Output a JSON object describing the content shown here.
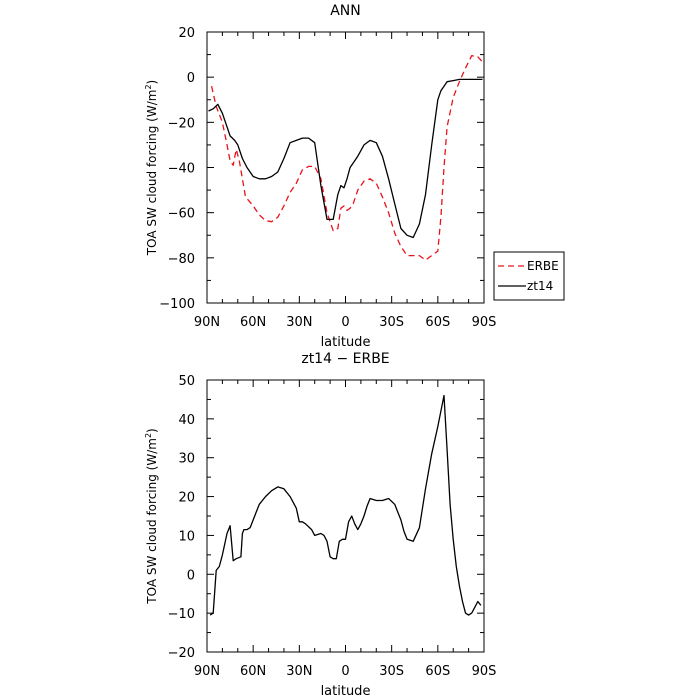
{
  "chart_data": [
    {
      "type": "line",
      "title": "ANN",
      "xlabel": "latitude",
      "ylabel_parts": [
        "TOA SW cloud forcing (W/m",
        "2",
        ")"
      ],
      "x_range": [
        90,
        -90
      ],
      "x_ticks": [
        90,
        60,
        30,
        0,
        -30,
        -60,
        -90
      ],
      "x_tick_labels": [
        "90N",
        "60N",
        "30N",
        "0",
        "30S",
        "60S",
        "90S"
      ],
      "ylim": [
        -100,
        20
      ],
      "y_ticks": [
        -100,
        -80,
        -60,
        -40,
        -20,
        0,
        20
      ],
      "y_tick_labels": [
        "−100",
        "−80",
        "−60",
        "−40",
        "−20",
        "0",
        "20"
      ],
      "legend_position": "right",
      "series": [
        {
          "name": "ERBE",
          "color": "#e8141c",
          "dash": "dashed",
          "x": [
            87,
            84,
            80,
            77,
            75,
            73,
            71,
            69,
            65,
            60,
            56,
            52,
            48,
            44,
            40,
            36,
            32,
            28,
            24,
            20,
            16,
            12,
            8,
            5,
            3,
            1,
            -1,
            -3,
            -5,
            -8,
            -12,
            -16,
            -20,
            -24,
            -28,
            -32,
            -36,
            -40,
            -44,
            -48,
            -52,
            -56,
            -60,
            -62,
            -64,
            -66,
            -70,
            -74,
            -78,
            -82,
            -86,
            -90
          ],
          "y": [
            -4,
            -13,
            -20,
            -30,
            -37,
            -39,
            -32,
            -37,
            -53,
            -57,
            -61,
            -63.5,
            -64,
            -62,
            -57,
            -51,
            -47,
            -41,
            -39.5,
            -39.5,
            -45,
            -60,
            -68,
            -67,
            -58,
            -57,
            -59,
            -58,
            -56,
            -50,
            -46,
            -45,
            -47,
            -53,
            -60,
            -69,
            -75,
            -79,
            -79,
            -79,
            -81,
            -79,
            -77,
            -62,
            -40,
            -22,
            -9,
            -2,
            4,
            9.5,
            9,
            6
          ]
        },
        {
          "name": "zt14",
          "color": "#000000",
          "dash": "solid",
          "x": [
            89,
            86,
            83,
            80,
            77,
            75,
            72,
            70,
            67,
            64,
            60,
            56,
            52,
            48,
            44,
            40,
            36,
            32,
            28,
            24,
            20,
            16,
            12,
            8,
            5,
            3,
            1,
            -1,
            -3,
            -5,
            -8,
            -12,
            -16,
            -20,
            -24,
            -28,
            -32,
            -36,
            -40,
            -44,
            -48,
            -52,
            -56,
            -60,
            -62,
            -64,
            -66,
            -70,
            -74,
            -78,
            -82,
            -86,
            -89
          ],
          "y": [
            -15,
            -14,
            -12,
            -16,
            -22,
            -26,
            -28,
            -30,
            -36,
            -40,
            -44,
            -45,
            -45,
            -44,
            -42,
            -36,
            -29,
            -28,
            -27,
            -27,
            -29,
            -48,
            -63,
            -63,
            -52,
            -48,
            -49,
            -45,
            -40,
            -38,
            -35,
            -30,
            -28,
            -29,
            -35,
            -45,
            -56,
            -67,
            -70,
            -71,
            -65,
            -52,
            -30,
            -10,
            -6,
            -4,
            -2,
            -1.5,
            -1,
            -1,
            -1,
            -1,
            -1
          ]
        }
      ]
    },
    {
      "type": "line",
      "title": "zt14 − ERBE",
      "xlabel": "latitude",
      "ylabel_parts": [
        "TOA SW cloud forcing (W/m",
        "2",
        ")"
      ],
      "x_range": [
        90,
        -90
      ],
      "x_ticks": [
        90,
        60,
        30,
        0,
        -30,
        -60,
        -90
      ],
      "x_tick_labels": [
        "90N",
        "60N",
        "30N",
        "0",
        "30S",
        "60S",
        "90S"
      ],
      "ylim": [
        -20,
        50
      ],
      "y_ticks": [
        -20,
        -10,
        0,
        10,
        20,
        30,
        40,
        50
      ],
      "y_tick_labels": [
        "−20",
        "−10",
        "0",
        "10",
        "20",
        "30",
        "40",
        "50"
      ],
      "series": [
        {
          "color": "#000000",
          "dash": "solid",
          "x": [
            88,
            86,
            84,
            82,
            80,
            77,
            75,
            73,
            71,
            68,
            67,
            66,
            64,
            62,
            60,
            58,
            56,
            52,
            48,
            44,
            40,
            36,
            32,
            30,
            28,
            26,
            22,
            20,
            16,
            14,
            12,
            10,
            8,
            6,
            4,
            2,
            0,
            -2,
            -4,
            -6,
            -8,
            -10,
            -12,
            -14,
            -16,
            -20,
            -24,
            -28,
            -32,
            -34,
            -36,
            -38,
            -40,
            -44,
            -48,
            -52,
            -56,
            -60,
            -64,
            -66,
            -68,
            -70,
            -72,
            -74,
            -76,
            -78,
            -80,
            -82,
            -84,
            -86,
            -88
          ],
          "y": [
            -10.5,
            -10,
            1,
            2,
            5,
            10.5,
            12.5,
            3.5,
            4,
            4.5,
            10.5,
            11.5,
            11.5,
            12,
            14,
            16,
            18,
            20,
            21.5,
            22.5,
            22,
            20,
            17,
            13.5,
            13.5,
            13,
            11.5,
            10,
            10.5,
            10,
            8.5,
            4.5,
            4,
            4,
            8.5,
            9,
            9,
            13.5,
            15,
            13,
            11.5,
            13,
            15,
            17.5,
            19.5,
            19,
            19,
            19.5,
            18,
            16,
            14,
            11,
            9,
            8.5,
            12,
            22,
            31,
            38,
            46,
            32,
            18,
            9,
            2,
            -3,
            -7,
            -10,
            -10.5,
            -10,
            -8.5,
            -7,
            -8
          ]
        }
      ]
    }
  ]
}
